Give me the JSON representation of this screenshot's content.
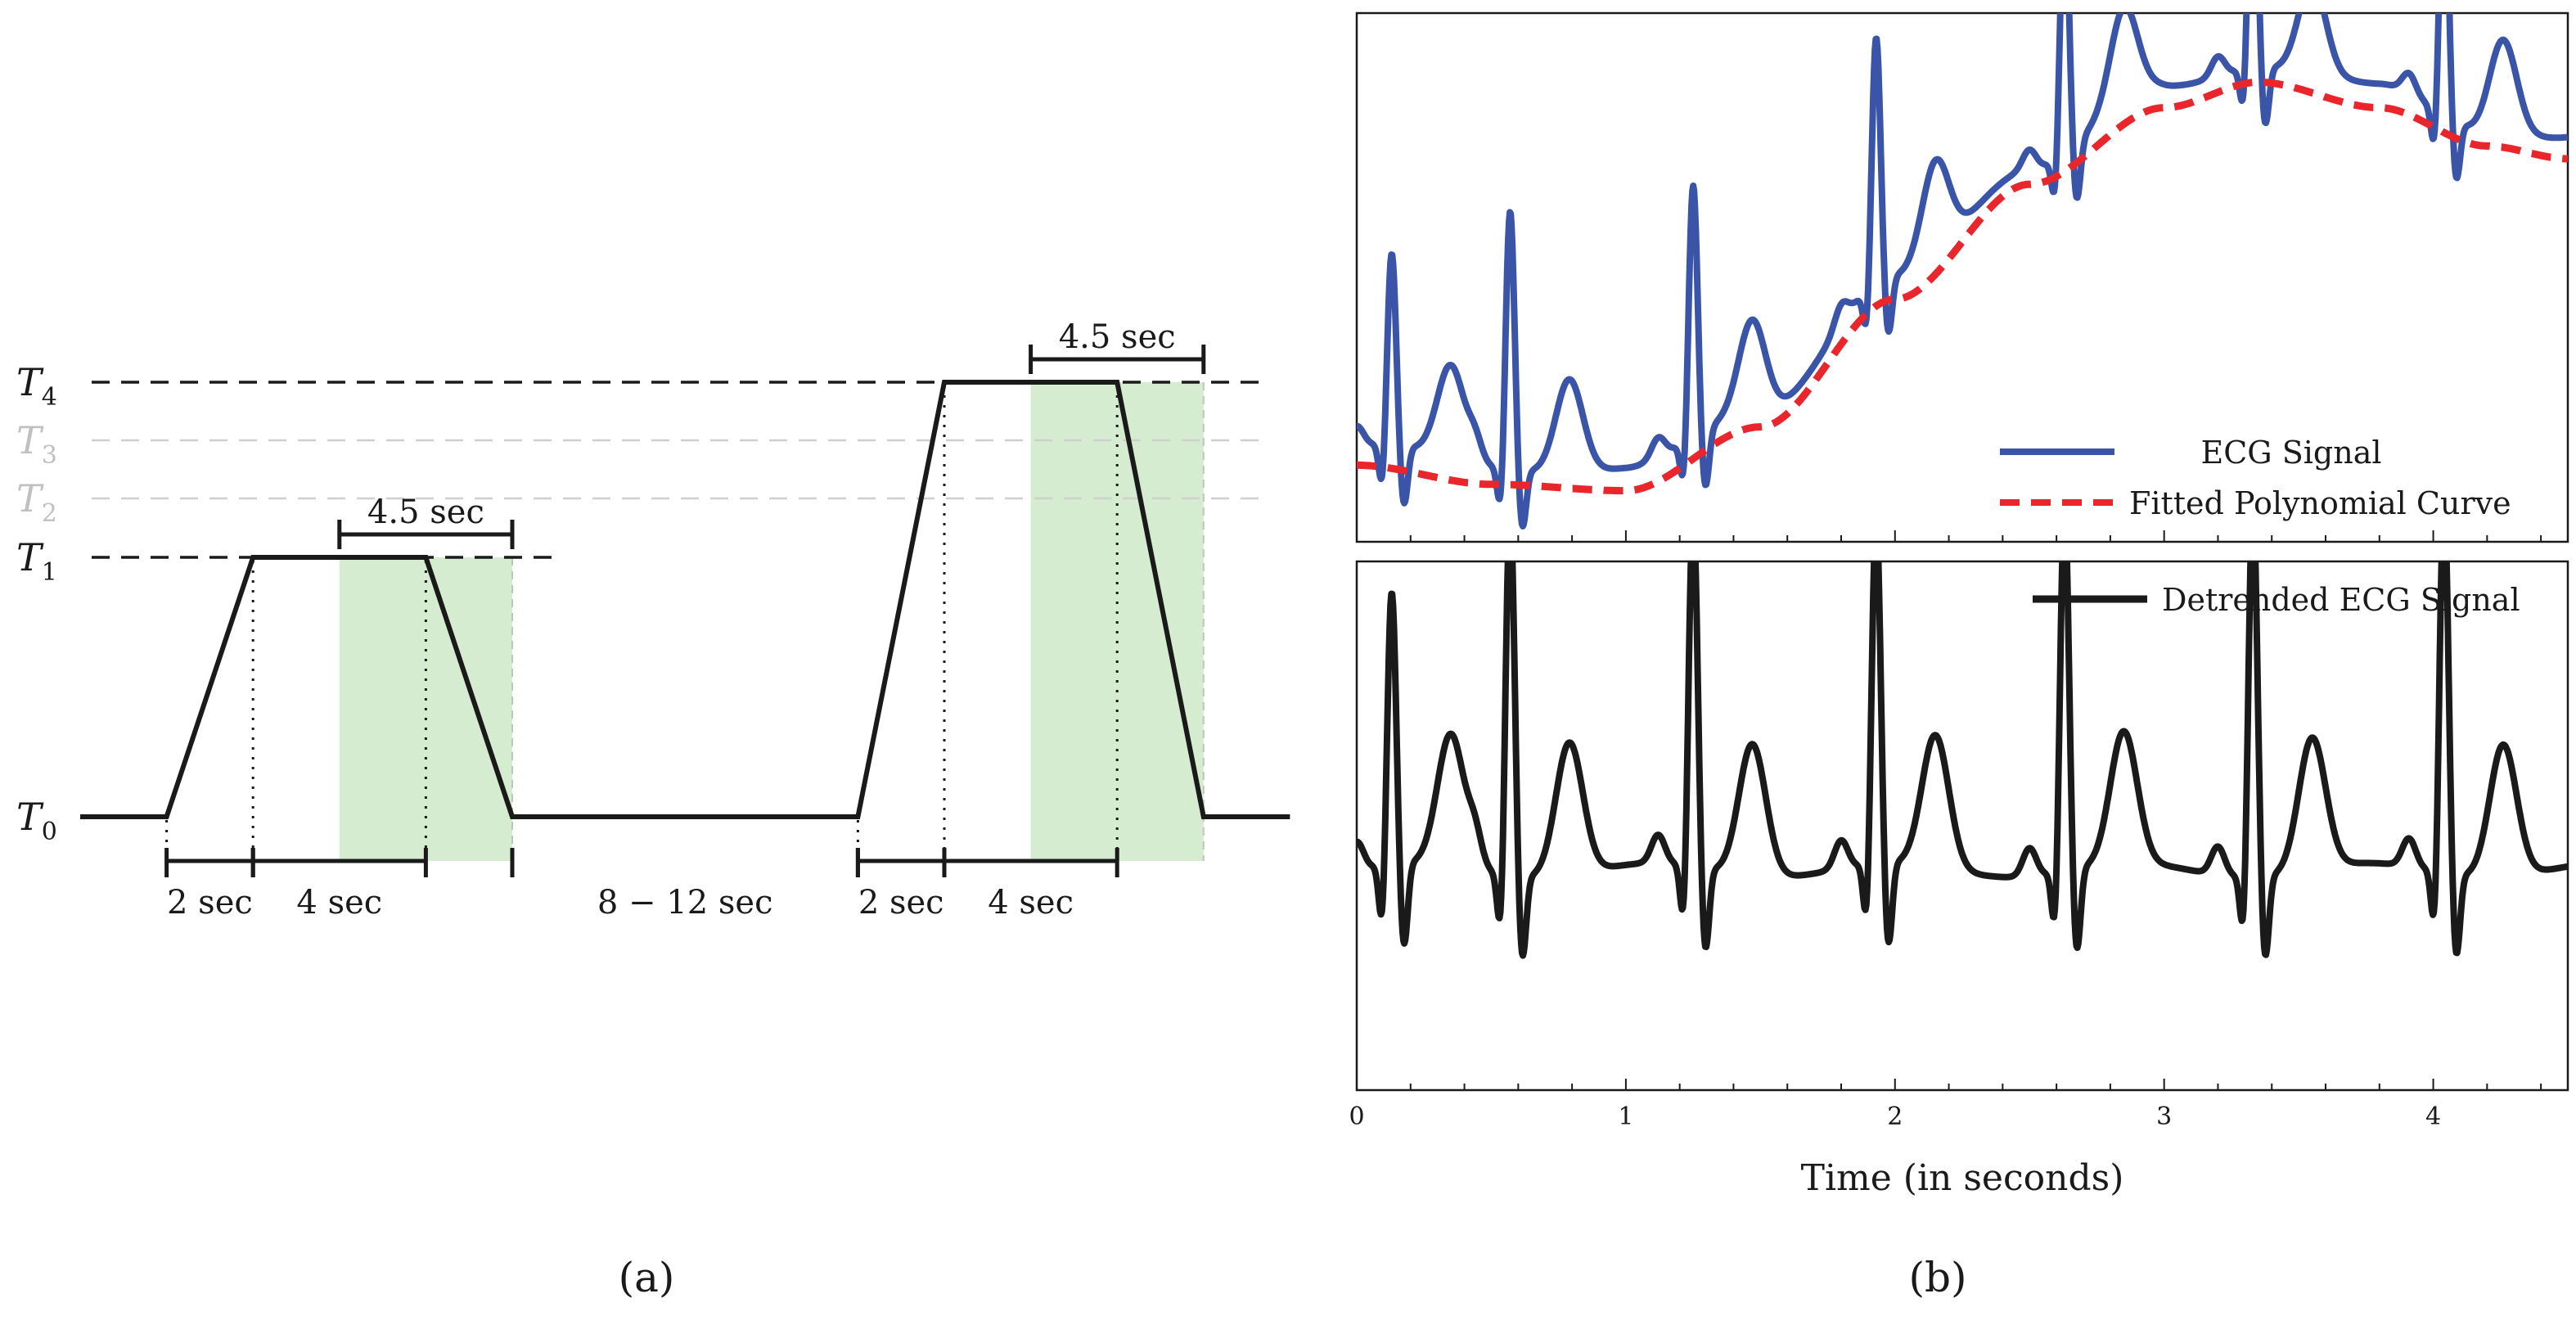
{
  "caption_a": "(a)",
  "caption_b": "(b)",
  "protocol": {
    "levels": [
      {
        "name": "T",
        "sub": "0",
        "value": 0,
        "muted": false
      },
      {
        "name": "T",
        "sub": "1",
        "value": 1,
        "muted": false
      },
      {
        "name": "T",
        "sub": "2",
        "value": 2,
        "muted": true
      },
      {
        "name": "T",
        "sub": "3",
        "value": 3,
        "muted": true
      },
      {
        "name": "T",
        "sub": "4",
        "value": 4,
        "muted": false
      }
    ],
    "profile_seconds": [
      [
        0,
        0
      ],
      [
        2,
        0
      ],
      [
        4,
        1
      ],
      [
        8,
        1
      ],
      [
        10,
        0
      ],
      [
        18,
        0
      ],
      [
        20,
        4
      ],
      [
        24,
        4
      ],
      [
        26,
        0
      ],
      [
        28,
        0
      ]
    ],
    "segments": [
      {
        "label": "2 sec",
        "from": 2,
        "to": 4
      },
      {
        "label": "4 sec",
        "from": 4,
        "to": 8
      },
      {
        "label": "8 − 12 sec",
        "from": 10,
        "to": 18
      },
      {
        "label": "2 sec",
        "from": 18,
        "to": 20
      },
      {
        "label": "4 sec",
        "from": 20,
        "to": 24
      }
    ],
    "windows": [
      {
        "label": "4.5 sec",
        "from": 6,
        "to": 10,
        "level": 1
      },
      {
        "label": "4.5 sec",
        "from": 22,
        "to": 26,
        "level": 4
      }
    ],
    "colors": {
      "window_fill": "#d5ecd0",
      "window_edge": "#b8c9b4",
      "line": "#1a1a1a",
      "muted": "#c0c0c0"
    }
  },
  "chart_data": [
    {
      "type": "line",
      "panel": "top",
      "x_range": [
        0,
        4.5
      ],
      "series": [
        {
          "name": "ECG Signal",
          "color": "#3a55a8",
          "style": "solid"
        },
        {
          "name": "Fitted Polynomial Curve",
          "color": "#e8262c",
          "style": "dashed",
          "poly_points": [
            [
              0,
              0.12
            ],
            [
              0.5,
              0.09
            ],
            [
              1.0,
              0.08
            ],
            [
              1.5,
              0.18
            ],
            [
              2.0,
              0.38
            ],
            [
              2.5,
              0.56
            ],
            [
              3.0,
              0.68
            ],
            [
              3.35,
              0.72
            ],
            [
              3.8,
              0.68
            ],
            [
              4.2,
              0.62
            ],
            [
              4.5,
              0.6
            ]
          ]
        }
      ],
      "beats": [
        0.13,
        0.57,
        1.25,
        1.93,
        2.63,
        3.33,
        4.04
      ],
      "legend": "bottom-right"
    },
    {
      "type": "line",
      "panel": "bottom",
      "x_range": [
        0,
        4.5
      ],
      "xlabel": "Time (in seconds)",
      "xticks": [
        0,
        1,
        2,
        3,
        4
      ],
      "series": [
        {
          "name": "Detrended ECG Signal",
          "color": "#1a1a1a",
          "style": "solid"
        }
      ],
      "beats": [
        0.13,
        0.57,
        1.25,
        1.93,
        2.63,
        3.33,
        4.04
      ],
      "legend": "top-right"
    }
  ]
}
